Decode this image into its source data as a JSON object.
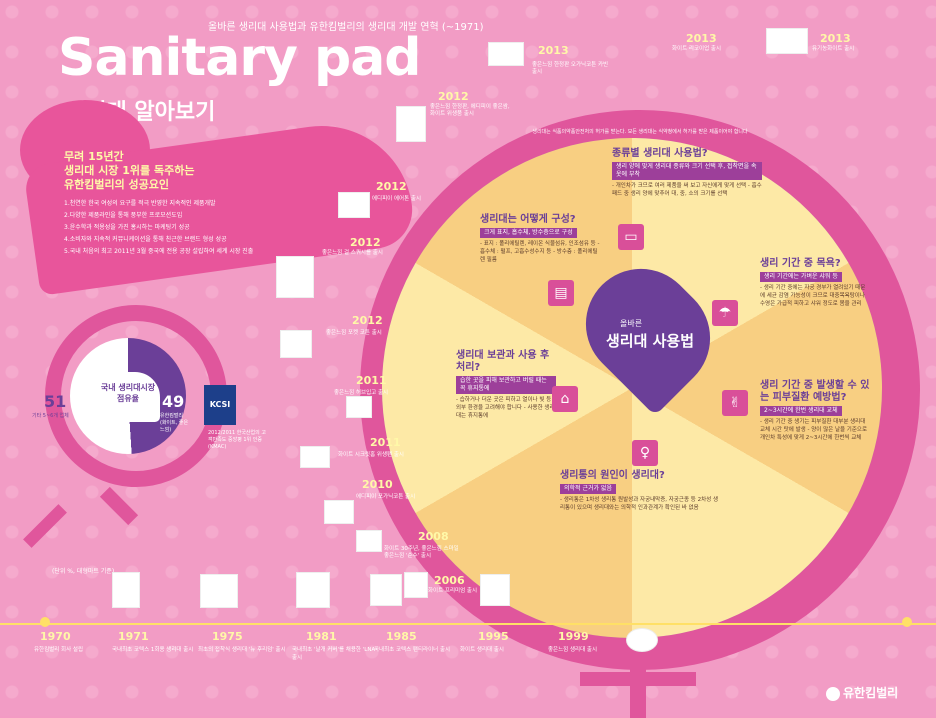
{
  "header": {
    "top_sub": "올바른 생리대 사용법과 유한킴벌리의 생리대 개발 연혁 (~1971)",
    "title": "Sanitary pad",
    "subtitle": "생리대 알아보기"
  },
  "intro": {
    "heading1": "무려 15년간",
    "heading2": "생리대 시장 1위를 독주하는",
    "heading3": "유한킴벌리의 성공요인",
    "items": [
      "1.천연한 한국 여성의 요구를 적극 반영한 지속적인 제품개발",
      "2.다양한 제품라인을 통해 풍부한 프로모션도입",
      "3.윤수학과 적용성을 가진 홍시하는 마케팅기 성공",
      "4.소비자와 지속적 커뮤니케이션을 통해 친근한 브랜드 형성 성공",
      "5.국내 처음의 최고 2011년 3월 중국에 전용 공장 설립하여 세계 시장 진출"
    ]
  },
  "pie": {
    "center_label": "국내 생리대시장 점유율",
    "left_value": "51",
    "left_label": "기타 5~6개 업체",
    "right_value": "49",
    "right_label": "유한킴벌리 (화이트, 좋은 느낌)",
    "share_yuhan_pct": 49
  },
  "kcsi": {
    "badge": "KCSI",
    "text": "2012/2011 한국산업의 고객만족도 중앙평 1위 인증(KMAC)"
  },
  "note": "(단위 %, 대형마트 기준)",
  "center": {
    "small": "올바른",
    "label": "생리대 사용법"
  },
  "sections": {
    "kinds": {
      "title": "종류별 생리대 사용법?",
      "tag": "생리 양에 맞게 생리대 종류와 크기 선택 후, 접착면을 속옷에 부착",
      "body": "- 개인차가 크므로 여러 제품을 써 보고 자신에게 맞게 선택 - 흡수 패드 중 생리 양에 맞추어 대, 중, 소의 크기를 선택"
    },
    "structure": {
      "title": "생리대는 어떻게 구성?",
      "tag": "크게 표지, 흡수체, 방수층으로 구성",
      "body": "- 표지 : 폴리에틸렌, 레이온 식물섬유, 인조섬유 등 - 흡수체 : 펄프, 고흡수성수지 등 - 방수층 : 폴리에틸렌 필름"
    },
    "bath": {
      "title": "생리 기간 중 목욕?",
      "tag": "생리 기간에는 가벼운 샤워 등",
      "body": "- 생리 기간 중에는 자궁 경부가 열려있기 때문에 세균 감염 가능성이 크므로 대중목욕탕이나 수영은 가급적 피하고 샤워 정도로 몸을 관리"
    },
    "storage": {
      "title": "생리대 보관과 사용 후 처리?",
      "tag": "습한 곳을 피해 보관하고 버릴 때는 꼭 휴지통에",
      "body": "- 습하거나 더운 곳은 피하고 열이나 빛 등 외부 환경을 고려해야 합니다 - 사용한 생리대는 휴지통에"
    },
    "skin": {
      "title": "생리 기간 중 발생할 수 있는 피부질환 예방법?",
      "tag": "2~3시간에 한번 생리대 교체",
      "body": "- 생리 기간 중 생기는 피부질환 대부분 생리대 교체 시간 탓에 발생 - 양이 많은 날을 기준으로 개인차 특성에 맞게 2~3시간에 한번씩 교체"
    },
    "cause": {
      "title": "생리통의 원인이 생리대?",
      "tag": "의학적 근거가 없음",
      "body": "- 생리통은 1차성 생리통 원발성과 자궁내막증, 자궁근종 등 2차성 생리통이 있으며 생리대와는 의학적 인과관계가 확인된 바 없음"
    }
  },
  "arc_text": "생리대는 식품의약품안전처의 허가를 받는다. 모든 생리대는 식약청에서 허가를 받은 제품이어야 합니다",
  "events": [
    {
      "year": "2013",
      "no": "05",
      "text": "좋은느낌 한정판 오가닉코튼 카빈출시"
    },
    {
      "year": "2013",
      "no": "11",
      "text": "화이트 리코이업 출시"
    },
    {
      "year": "2013",
      "no": "12",
      "text": "유기농화이트 출시"
    },
    {
      "year": "2012",
      "no": "08",
      "text": "좋은느낌 한정판, 에디피이 좋은쌈, 화이트 위생품 출시"
    },
    {
      "year": "2012",
      "no": "08",
      "text": "에디피이 에어톤 출시"
    },
    {
      "year": "2012",
      "no": "07",
      "text": "좋은느낌 걸 스쿼시를 출시"
    },
    {
      "year": "2012",
      "no": "07",
      "text": "좋은느낌 포켓 코튼 출시"
    },
    {
      "year": "2011",
      "no": "06",
      "text": "좋은느낌 허브입고 출시"
    },
    {
      "year": "2011",
      "no": "03",
      "text": "화이트 시크릿홈 위생팬 출시"
    },
    {
      "year": "2010",
      "no": "06",
      "text": "에디피이 포가닉코튼 출시"
    },
    {
      "year": "2008",
      "no": "07",
      "text": "화이트 30주년, 좋은느낌 스마일 좋은느낌 '순수' 출시"
    },
    {
      "year": "2006",
      "no": "03",
      "text": "화이트 프리미엄 출시"
    }
  ],
  "timeline": [
    {
      "year": "1970",
      "no": "13",
      "text": "유한킴벌리 회사 설립"
    },
    {
      "year": "1971",
      "no": "10",
      "text": "국내최초 코텍스 1회용 생리대 출시"
    },
    {
      "year": "1975",
      "no": "05",
      "text": "최초의 접착식 생리대 '뉴 후리덤' 출시"
    },
    {
      "year": "1981",
      "no": "01",
      "text": "국내최초 '날개 커버'를 채용한 'LNA' 출시"
    },
    {
      "year": "1985",
      "no": "10",
      "text": "국내최초 코텍스 팬티라이너 출시"
    },
    {
      "year": "1995",
      "no": "10",
      "text": "화이트 생리대 출시"
    },
    {
      "year": "1999",
      "no": "11",
      "text": "좋은느낌 생리대 출시"
    }
  ],
  "logo": "유한킴벌리",
  "colors": {
    "background": "#f39bc4",
    "magenta": "#e0569c",
    "purple": "#6b3f98",
    "yellow": "#fde9a6",
    "accent": "#fff8a8"
  }
}
